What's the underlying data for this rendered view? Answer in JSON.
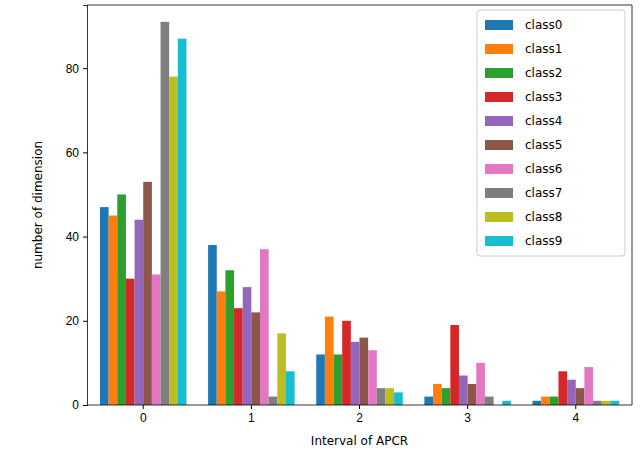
{
  "chart_data": {
    "type": "bar",
    "x_label": "Interval of APCR",
    "y_label": "number of dimension",
    "categories": [
      "0",
      "1",
      "2",
      "3",
      "4"
    ],
    "series": [
      {
        "name": "class0",
        "color": "#1f77b4",
        "values": [
          47,
          38,
          12,
          2,
          1
        ]
      },
      {
        "name": "class1",
        "color": "#ff7f0e",
        "values": [
          45,
          27,
          21,
          5,
          2
        ]
      },
      {
        "name": "class2",
        "color": "#2ca02c",
        "values": [
          50,
          32,
          12,
          4,
          2
        ]
      },
      {
        "name": "class3",
        "color": "#d62728",
        "values": [
          30,
          23,
          20,
          19,
          8
        ]
      },
      {
        "name": "class4",
        "color": "#9467bd",
        "values": [
          44,
          28,
          15,
          7,
          6
        ]
      },
      {
        "name": "class5",
        "color": "#8c564b",
        "values": [
          53,
          22,
          16,
          5,
          4
        ]
      },
      {
        "name": "class6",
        "color": "#e377c2",
        "values": [
          31,
          37,
          13,
          10,
          9
        ]
      },
      {
        "name": "class7",
        "color": "#7f7f7f",
        "values": [
          91,
          2,
          4,
          2,
          1
        ]
      },
      {
        "name": "class8",
        "color": "#bcbd22",
        "values": [
          78,
          17,
          4,
          0,
          1
        ]
      },
      {
        "name": "class9",
        "color": "#17becf",
        "values": [
          87,
          8,
          3,
          1,
          1
        ]
      }
    ],
    "ylim": [
      0,
      95
    ],
    "yticks": [
      0,
      20,
      40,
      60,
      80
    ],
    "legend": "upper right",
    "grid": false
  }
}
